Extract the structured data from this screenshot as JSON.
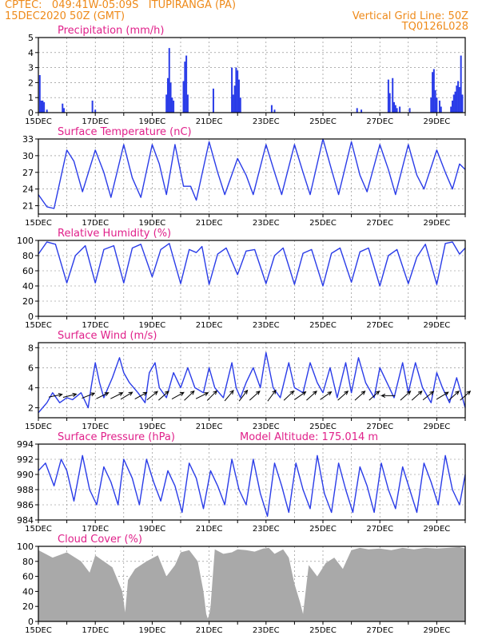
{
  "header": {
    "line1": "CPTEC:   049:41W-05:09S   ITUPIRANGA (PA)",
    "line2": "15DEC2020 50Z (GMT)",
    "right1": "Vertical Grid Line: 50Z",
    "right2": "TQ0126L028"
  },
  "colors": {
    "header": "#ee8a1a",
    "title": "#e0208a",
    "line": "#2a3ce8",
    "bar": "#2a3ce8",
    "cloud": "#a9a9a9",
    "frame": "#000000",
    "grid": "#7f7f7f",
    "arrow": "#000000"
  },
  "chart_data": [
    {
      "type": "bar",
      "title": "Precipitation (mm/h)",
      "ylim": [
        0,
        5
      ],
      "yticks": [
        0,
        1,
        2,
        3,
        4,
        5
      ],
      "xtick_labels": [
        "15DEC",
        "17DEC",
        "19DEC",
        "21DEC",
        "23DEC",
        "25DEC",
        "27DEC",
        "29DEC"
      ],
      "x": [
        0.05,
        0.1,
        0.15,
        0.2,
        0.3,
        0.85,
        0.9,
        1.9,
        2.0,
        4.5,
        4.55,
        4.6,
        4.65,
        4.7,
        4.75,
        5.1,
        5.15,
        5.2,
        5.25,
        6.15,
        6.8,
        6.85,
        6.9,
        6.95,
        7.0,
        7.05,
        7.1,
        8.2,
        8.3,
        11.2,
        11.35,
        12.3,
        12.35,
        12.45,
        12.5,
        12.55,
        12.6,
        12.7,
        13.05,
        13.8,
        13.85,
        13.9,
        13.95,
        14.0,
        14.1,
        14.15,
        14.5,
        14.55,
        14.6,
        14.65,
        14.7,
        14.75,
        14.8,
        14.85,
        14.9
      ],
      "values": [
        2.5,
        0.8,
        0.8,
        0.7,
        0.2,
        0.6,
        0.3,
        0.8,
        0.2,
        1.2,
        2.3,
        4.3,
        2.0,
        1.0,
        0.8,
        2.1,
        3.4,
        3.8,
        1.2,
        1.6,
        3.0,
        1.2,
        1.8,
        3.0,
        2.8,
        2.2,
        1.0,
        0.5,
        0.2,
        0.3,
        0.2,
        2.2,
        1.3,
        2.3,
        0.7,
        0.5,
        0.3,
        0.4,
        0.3,
        1.0,
        2.7,
        2.9,
        1.5,
        1.0,
        0.8,
        0.4,
        0.4,
        0.8,
        1.2,
        1.4,
        1.8,
        2.1,
        1.7,
        3.8,
        1.2
      ]
    },
    {
      "type": "line",
      "title": "Surface Temperature (nC)",
      "ylim": [
        19.5,
        33
      ],
      "yticks": [
        21,
        24,
        27,
        30,
        33
      ],
      "xtick_labels": [
        "15DEC",
        "17DEC",
        "19DEC",
        "21DEC",
        "23DEC",
        "25DEC",
        "27DEC",
        "29DEC"
      ],
      "x": [
        0,
        0.3,
        0.55,
        1.0,
        1.25,
        1.55,
        2.0,
        2.3,
        2.55,
        3.0,
        3.3,
        3.6,
        4.0,
        4.25,
        4.5,
        4.8,
        5.1,
        5.35,
        5.55,
        6.0,
        6.3,
        6.55,
        7.0,
        7.3,
        7.55,
        8.0,
        8.3,
        8.55,
        9.0,
        9.3,
        9.55,
        10.0,
        10.3,
        10.55,
        11.0,
        11.3,
        11.55,
        12.0,
        12.3,
        12.55,
        13.0,
        13.3,
        13.55,
        14.0,
        14.3,
        14.55,
        14.8,
        15.0
      ],
      "values": [
        23,
        20.8,
        20.5,
        31,
        29,
        23.5,
        31,
        27,
        22.5,
        32,
        26,
        22.5,
        32,
        28.5,
        23,
        32,
        24.5,
        24.5,
        22,
        32.5,
        27,
        23,
        29.5,
        26.5,
        23,
        32,
        27,
        23,
        32,
        27,
        23,
        33,
        27.5,
        23,
        32.5,
        26.5,
        23.5,
        32,
        27.5,
        23,
        32,
        26.5,
        24,
        31,
        27,
        24,
        28.5,
        27.5
      ]
    },
    {
      "type": "line",
      "title": "Relative Humidity (%)",
      "ylim": [
        0,
        100
      ],
      "yticks": [
        0,
        20,
        40,
        60,
        80,
        100
      ],
      "xtick_labels": [
        "15DEC",
        "17DEC",
        "19DEC",
        "21DEC",
        "23DEC",
        "25DEC",
        "27DEC",
        "29DEC"
      ],
      "x": [
        0,
        0.3,
        0.6,
        1.0,
        1.3,
        1.65,
        2.0,
        2.3,
        2.65,
        3.0,
        3.3,
        3.6,
        4.0,
        4.3,
        4.6,
        5.0,
        5.3,
        5.55,
        5.75,
        6.0,
        6.3,
        6.6,
        7.0,
        7.3,
        7.6,
        8.0,
        8.3,
        8.6,
        9.0,
        9.3,
        9.6,
        10.0,
        10.3,
        10.6,
        11.0,
        11.3,
        11.6,
        12.0,
        12.3,
        12.6,
        13.0,
        13.3,
        13.6,
        14.0,
        14.3,
        14.55,
        14.8,
        15.0
      ],
      "values": [
        82,
        98,
        95,
        44,
        80,
        93,
        44,
        88,
        93,
        44,
        90,
        95,
        52,
        88,
        96,
        43,
        88,
        84,
        92,
        42,
        82,
        90,
        55,
        86,
        88,
        43,
        80,
        90,
        42,
        83,
        88,
        40,
        83,
        90,
        45,
        85,
        90,
        40,
        80,
        88,
        43,
        78,
        95,
        42,
        96,
        98,
        82,
        90
      ]
    },
    {
      "type": "line",
      "title": "Surface Wind (m/s)",
      "ylim": [
        1,
        8.5
      ],
      "yticks": [
        2,
        4,
        6,
        8
      ],
      "xtick_labels": [
        "15DEC",
        "17DEC",
        "19DEC",
        "21DEC",
        "23DEC",
        "25DEC",
        "27DEC",
        "29DEC"
      ],
      "x": [
        0,
        0.3,
        0.5,
        0.75,
        1.0,
        1.2,
        1.5,
        1.75,
        1.85,
        2.0,
        2.15,
        2.3,
        2.6,
        2.85,
        3.0,
        3.2,
        3.5,
        3.75,
        3.9,
        4.1,
        4.25,
        4.5,
        4.75,
        5.0,
        5.25,
        5.5,
        5.8,
        6.0,
        6.2,
        6.5,
        6.8,
        6.95,
        7.1,
        7.3,
        7.55,
        7.8,
        8.0,
        8.25,
        8.5,
        8.8,
        9.0,
        9.3,
        9.55,
        9.8,
        10.0,
        10.25,
        10.5,
        10.8,
        11.0,
        11.25,
        11.5,
        11.8,
        12.0,
        12.25,
        12.5,
        12.8,
        13.0,
        13.25,
        13.5,
        13.8,
        14.0,
        14.2,
        14.45,
        14.7,
        14.85,
        15.0
      ],
      "values": [
        1.5,
        2.5,
        3.5,
        2.5,
        3.0,
        2.8,
        3.5,
        2.0,
        4.0,
        6.5,
        4.5,
        3.0,
        5.0,
        7.0,
        5.5,
        4.5,
        3.5,
        2.5,
        5.5,
        6.5,
        4.0,
        3.0,
        5.5,
        4.0,
        6.0,
        4.0,
        3.5,
        6.0,
        4.0,
        3.0,
        6.5,
        4.0,
        3.0,
        4.5,
        6.0,
        4.0,
        7.5,
        4.0,
        3.0,
        6.5,
        4.0,
        3.5,
        6.5,
        4.5,
        3.5,
        6.0,
        3.0,
        6.5,
        3.5,
        7.0,
        4.5,
        3.0,
        6.0,
        4.5,
        3.0,
        6.5,
        3.5,
        6.5,
        4.0,
        2.5,
        5.5,
        4.0,
        2.5,
        5.0,
        3.5,
        2.0
      ],
      "vectors": {
        "x": [
          0.6,
          1.1,
          1.75,
          2.25,
          2.75,
          3.1,
          3.6,
          4.0,
          4.4,
          4.9,
          5.3,
          5.75,
          6.1,
          6.7,
          7.2,
          7.6,
          8.2,
          8.8,
          9.2,
          9.6,
          10.1,
          10.7,
          11.3,
          11.8,
          12.3,
          12.9,
          13.3,
          13.7,
          14.2,
          14.6,
          15.0
        ],
        "u": [
          1,
          1,
          1,
          1,
          1,
          1,
          1,
          1,
          1,
          1,
          1,
          1,
          1,
          1,
          1,
          1,
          1,
          1,
          1,
          1,
          1,
          1,
          1,
          1,
          -1,
          1,
          1,
          1,
          1,
          1,
          1
        ],
        "v": [
          0.2,
          0.25,
          0.4,
          0.5,
          0.5,
          0.6,
          0.55,
          0.8,
          0.9,
          0.55,
          0.95,
          0.5,
          1.0,
          1.2,
          1.3,
          0.9,
          1.35,
          0.95,
          0.7,
          0.9,
          0.7,
          0.9,
          0.9,
          0.9,
          0.0,
          0.9,
          0.9,
          0.8,
          0.6,
          0.9,
          0.9
        ]
      }
    },
    {
      "type": "line",
      "title": "Surface Pressure (hPa)",
      "annotation": "Model Altitude: 175.014 m",
      "ylim": [
        984,
        994
      ],
      "yticks": [
        984,
        986,
        988,
        990,
        992,
        994
      ],
      "xtick_labels": [
        "15DEC",
        "17DEC",
        "19DEC",
        "21DEC",
        "23DEC",
        "25DEC",
        "27DEC",
        "29DEC"
      ],
      "x": [
        0,
        0.25,
        0.55,
        0.8,
        1.0,
        1.25,
        1.55,
        1.8,
        2.05,
        2.3,
        2.55,
        2.8,
        3.0,
        3.3,
        3.55,
        3.8,
        4.05,
        4.3,
        4.55,
        4.8,
        5.05,
        5.3,
        5.55,
        5.8,
        6.05,
        6.3,
        6.55,
        6.8,
        7.05,
        7.3,
        7.55,
        7.8,
        8.05,
        8.3,
        8.55,
        8.8,
        9.05,
        9.3,
        9.55,
        9.8,
        10.05,
        10.3,
        10.55,
        10.8,
        11.05,
        11.3,
        11.55,
        11.8,
        12.05,
        12.3,
        12.55,
        12.8,
        13.05,
        13.3,
        13.55,
        13.8,
        14.05,
        14.3,
        14.55,
        14.8,
        15.0
      ],
      "values": [
        990.5,
        991.5,
        988.5,
        992.0,
        990.5,
        986.5,
        992.5,
        988.0,
        986.0,
        991.0,
        989.0,
        986.0,
        992.0,
        989.5,
        986.0,
        992.0,
        989.0,
        986.5,
        990.5,
        988.5,
        985.0,
        991.5,
        989.5,
        985.5,
        990.5,
        988.5,
        986.0,
        992.0,
        988.0,
        986.0,
        992.0,
        987.5,
        984.5,
        991.5,
        988.5,
        985.0,
        991.5,
        988.0,
        985.5,
        992.5,
        987.5,
        985.0,
        991.5,
        988.0,
        985.0,
        991.0,
        988.5,
        985.0,
        991.5,
        988.0,
        985.5,
        991.0,
        988.0,
        985.0,
        991.5,
        989.0,
        986.0,
        992.5,
        988.0,
        986.0,
        990.0
      ]
    },
    {
      "type": "area",
      "title": "Cloud Cover (%)",
      "ylim": [
        0,
        100
      ],
      "yticks": [
        0,
        20,
        40,
        60,
        80,
        100
      ],
      "xtick_labels": [
        "15DEC",
        "17DEC",
        "19DEC",
        "21DEC",
        "23DEC",
        "25DEC",
        "27DEC",
        "29DEC"
      ],
      "x": [
        0,
        0.5,
        1.0,
        1.5,
        1.8,
        2.0,
        2.3,
        2.6,
        2.95,
        3.05,
        3.15,
        3.4,
        3.8,
        4.2,
        4.5,
        4.8,
        5.0,
        5.3,
        5.6,
        5.8,
        5.9,
        5.95,
        6.0,
        6.05,
        6.2,
        6.5,
        6.8,
        7.0,
        7.3,
        7.6,
        7.9,
        8.1,
        8.3,
        8.6,
        8.8,
        9.0,
        9.2,
        9.3,
        9.5,
        9.8,
        10.1,
        10.4,
        10.7,
        11.0,
        11.3,
        11.6,
        12.0,
        12.4,
        12.8,
        13.2,
        13.6,
        14.0,
        14.4,
        14.8,
        15.0
      ],
      "values": [
        95,
        85,
        92,
        80,
        65,
        88,
        80,
        72,
        40,
        12,
        55,
        70,
        80,
        88,
        60,
        75,
        92,
        95,
        80,
        40,
        10,
        4,
        8,
        20,
        96,
        90,
        92,
        96,
        95,
        93,
        97,
        98,
        90,
        96,
        85,
        50,
        25,
        10,
        75,
        60,
        78,
        85,
        70,
        95,
        98,
        96,
        97,
        95,
        98,
        96,
        98,
        97,
        98,
        99,
        97
      ]
    }
  ]
}
